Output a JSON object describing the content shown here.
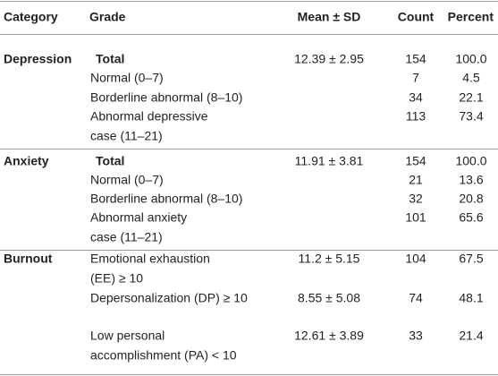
{
  "table": {
    "header": [
      "Category",
      "Grade",
      "Mean ± SD",
      "Count",
      "Percent"
    ],
    "rows": [
      {
        "category": "Depression",
        "grade": [
          "Total"
        ],
        "mean": "12.39 ± 2.95",
        "count": "154",
        "percent": "100.0"
      },
      {
        "grade": [
          "Normal (0–7)"
        ],
        "count": "7",
        "percent": "4.5"
      },
      {
        "grade": [
          "Borderline abnormal (8–10)"
        ],
        "count": "34",
        "percent": "22.1"
      },
      {
        "grade": [
          "Abnormal depressive",
          "case (11–21)"
        ],
        "count": "113",
        "percent": "73.4"
      },
      {
        "category": "Anxiety",
        "grade": [
          "Total"
        ],
        "mean": "11.91 ± 3.81",
        "count": "154",
        "percent": "100.0"
      },
      {
        "grade": [
          "Normal (0–7)"
        ],
        "count": "21",
        "percent": "13.6"
      },
      {
        "grade": [
          "Borderline abnormal (8–10)"
        ],
        "count": "32",
        "percent": "20.8"
      },
      {
        "grade": [
          "Abnormal anxiety",
          "case (11–21)"
        ],
        "count": "101",
        "percent": "65.6"
      },
      {
        "category": "Burnout",
        "grade": [
          "Emotional exhaustion",
          "(EE) ≥ 10"
        ],
        "mean": "11.2 ± 5.15",
        "count": "104",
        "percent": "67.5"
      },
      {
        "grade": [
          "Depersonalization (DP) ≥ 10"
        ],
        "mean": "8.55 ± 5.08",
        "count": "74",
        "percent": "48.1"
      },
      {
        "grade": [
          "Low personal",
          "accomplishment (PA) < 10"
        ],
        "mean": "12.61 ± 3.89",
        "count": "33",
        "percent": "21.4"
      }
    ]
  }
}
